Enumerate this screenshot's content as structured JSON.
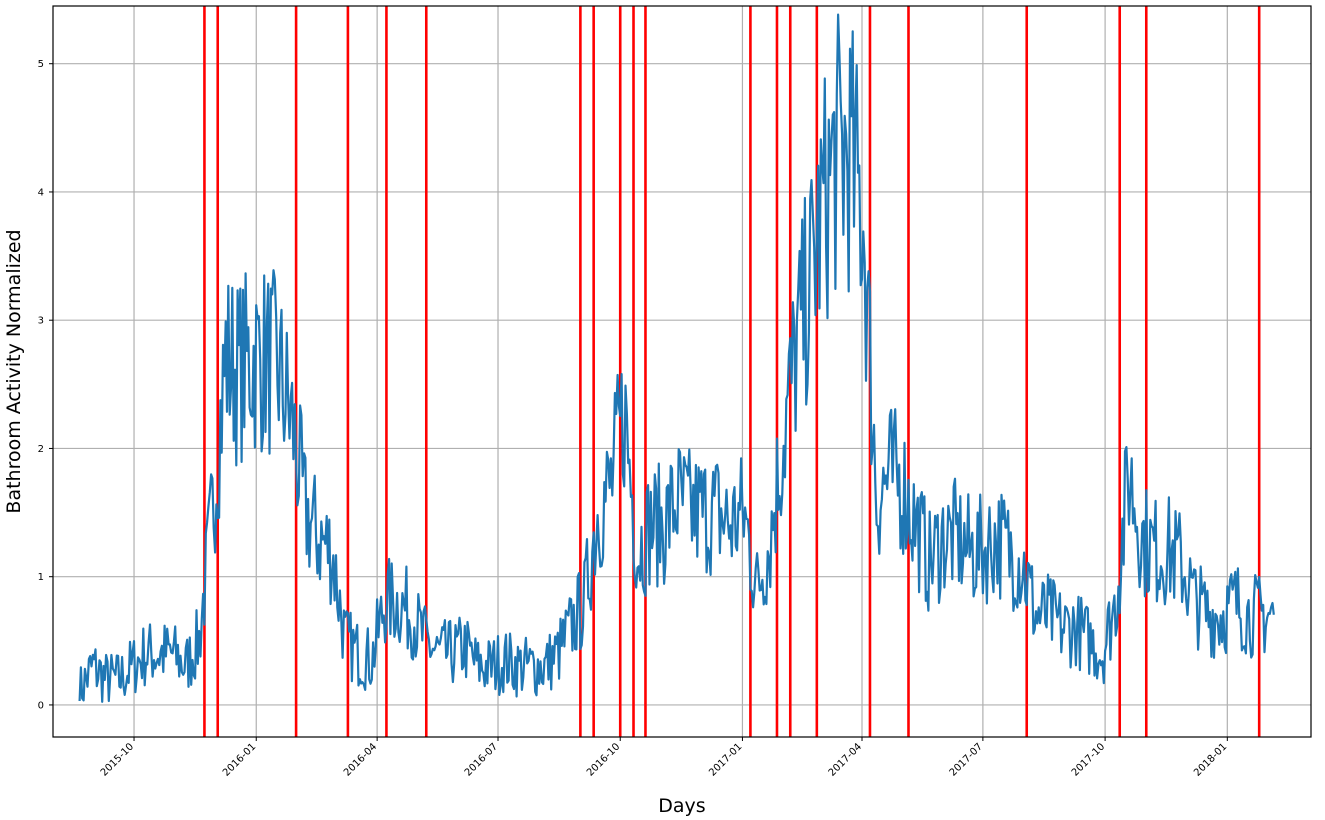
{
  "chart_data": {
    "type": "line",
    "title": "",
    "xlabel": "Days",
    "ylabel": "Bathroom Activity Normalized",
    "x_axis_type": "date",
    "xlim": [
      "2015-08-01",
      "2018-03-05"
    ],
    "ylim": [
      -0.25,
      5.45
    ],
    "y_ticks": [
      0,
      1,
      2,
      3,
      4,
      5
    ],
    "x_ticks": [
      "2015-10",
      "2016-01",
      "2016-04",
      "2016-07",
      "2016-10",
      "2017-01",
      "2017-04",
      "2017-07",
      "2017-10",
      "2018-01"
    ],
    "grid": true,
    "legend": "none",
    "colors": {
      "series": "#1f77b4",
      "changepoints": "#ff0000",
      "grid": "#b0b0b0"
    },
    "series": [
      {
        "x": [
          "2015-08-21",
          "2015-08-31",
          "2015-09-10",
          "2015-09-20",
          "2015-09-30",
          "2015-10-10",
          "2015-10-20",
          "2015-10-30",
          "2015-11-09",
          "2015-11-19",
          "2015-11-29",
          "2015-12-09",
          "2015-12-19",
          "2015-12-29",
          "2016-01-08",
          "2016-01-18",
          "2016-01-28",
          "2016-02-07",
          "2016-02-17",
          "2016-02-27",
          "2016-03-08",
          "2016-03-18",
          "2016-03-28",
          "2016-04-07",
          "2016-04-17",
          "2016-04-27",
          "2016-05-07",
          "2016-05-17",
          "2016-05-27",
          "2016-06-06",
          "2016-06-16",
          "2016-06-26",
          "2016-07-06",
          "2016-07-16",
          "2016-07-26",
          "2016-08-05",
          "2016-08-15",
          "2016-08-25",
          "2016-09-04",
          "2016-09-14",
          "2016-09-24",
          "2016-10-04",
          "2016-10-14",
          "2016-10-24",
          "2016-11-03",
          "2016-11-13",
          "2016-11-23",
          "2016-12-03",
          "2016-12-13",
          "2016-12-23",
          "2017-01-02",
          "2017-01-12",
          "2017-01-22",
          "2017-02-01",
          "2017-02-11",
          "2017-02-21",
          "2017-03-03",
          "2017-03-13",
          "2017-03-23",
          "2017-04-02",
          "2017-04-12",
          "2017-04-22",
          "2017-05-02",
          "2017-05-12",
          "2017-05-22",
          "2017-06-01",
          "2017-06-11",
          "2017-06-21",
          "2017-07-01",
          "2017-07-11",
          "2017-07-21",
          "2017-07-31",
          "2017-08-10",
          "2017-08-20",
          "2017-08-30",
          "2017-09-09",
          "2017-09-19",
          "2017-09-29",
          "2017-10-09",
          "2017-10-19",
          "2017-10-29",
          "2017-11-08",
          "2017-11-18",
          "2017-11-28",
          "2017-12-08",
          "2017-12-18",
          "2017-12-28",
          "2018-01-07",
          "2018-01-17",
          "2018-01-27"
        ],
        "values": [
          0.1,
          0.3,
          0.2,
          0.2,
          0.3,
          0.4,
          0.4,
          0.4,
          0.3,
          0.5,
          1.5,
          2.7,
          2.6,
          2.7,
          2.7,
          2.6,
          2.2,
          1.5,
          1.3,
          1.2,
          0.5,
          0.4,
          0.35,
          0.8,
          0.8,
          0.7,
          0.5,
          0.4,
          0.4,
          0.45,
          0.3,
          0.3,
          0.35,
          0.3,
          0.3,
          0.3,
          0.4,
          0.6,
          0.8,
          1.5,
          1.7,
          2.3,
          1.2,
          1.4,
          1.4,
          1.6,
          1.5,
          1.5,
          1.5,
          1.4,
          1.5,
          0.9,
          1.3,
          2.1,
          2.8,
          3.3,
          3.9,
          4.3,
          4.3,
          3.8,
          1.6,
          1.8,
          1.7,
          1.4,
          1.1,
          1.3,
          1.3,
          1.2,
          1.2,
          1.3,
          1.2,
          1.1,
          0.7,
          0.7,
          0.6,
          0.6,
          0.5,
          0.4,
          0.8,
          1.8,
          1.3,
          1.2,
          1.2,
          1.1,
          0.8,
          0.7,
          0.7,
          0.8,
          0.7,
          0.7
        ]
      }
    ],
    "change_points": [
      "2015-11-23",
      "2015-12-03",
      "2016-01-31",
      "2016-03-10",
      "2016-04-08",
      "2016-05-08",
      "2016-09-01",
      "2016-09-11",
      "2016-10-01",
      "2016-10-11",
      "2016-10-20",
      "2017-01-07",
      "2017-01-27",
      "2017-02-06",
      "2017-02-26",
      "2017-04-07",
      "2017-05-06",
      "2017-08-03",
      "2017-10-12",
      "2017-11-01",
      "2018-01-25"
    ]
  }
}
